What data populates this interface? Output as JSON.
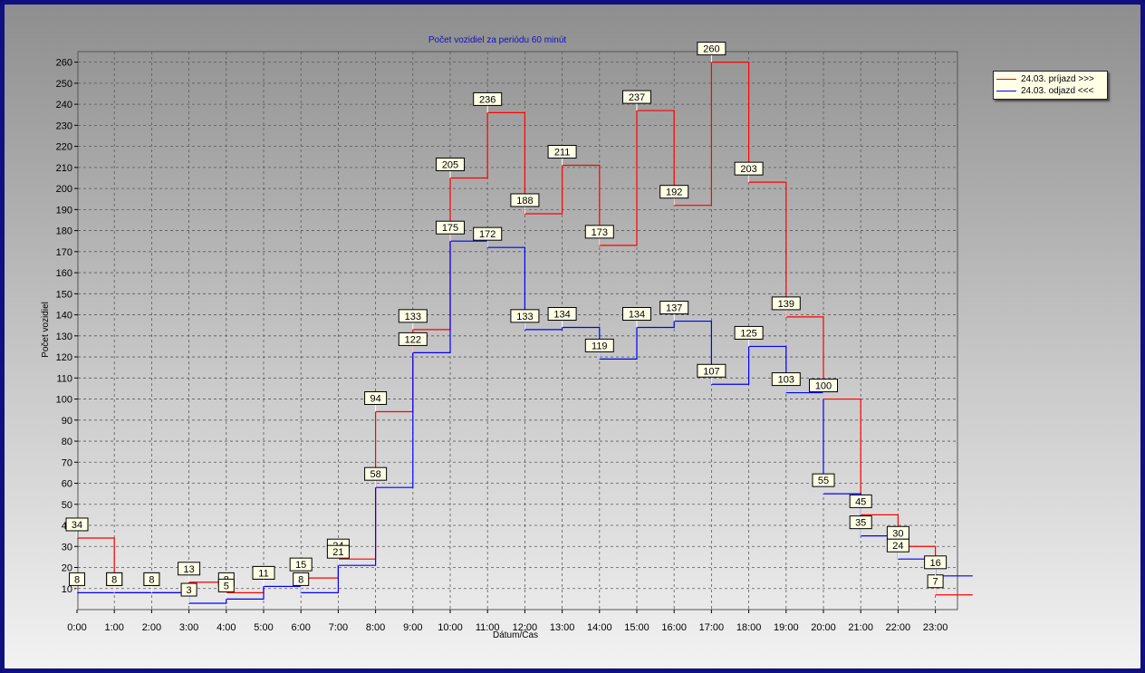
{
  "chart_data": {
    "type": "line",
    "title": "Počet vozidiel za periódu 60 minút",
    "xlabel": "Dátum/Čas",
    "ylabel": "Počet vozidiel",
    "categories": [
      "0:00",
      "1:00",
      "2:00",
      "3:00",
      "4:00",
      "5:00",
      "6:00",
      "7:00",
      "8:00",
      "9:00",
      "10:00",
      "11:00",
      "12:00",
      "13:00",
      "14:00",
      "15:00",
      "16:00",
      "17:00",
      "18:00",
      "19:00",
      "20:00",
      "21:00",
      "22:00",
      "23:00"
    ],
    "ylim": [
      0,
      265
    ],
    "yticks": [
      10,
      20,
      30,
      40,
      50,
      60,
      70,
      80,
      90,
      100,
      110,
      120,
      130,
      140,
      150,
      160,
      170,
      180,
      190,
      200,
      210,
      220,
      230,
      240,
      250,
      260
    ],
    "grid": true,
    "legend_position": "top-right",
    "series": [
      {
        "name": "24.03. príjazd >>>",
        "color": "#ff0000",
        "values": [
          34,
          8,
          8,
          13,
          8,
          11,
          15,
          24,
          94,
          133,
          205,
          236,
          188,
          211,
          173,
          237,
          192,
          260,
          203,
          139,
          100,
          45,
          30,
          7
        ]
      },
      {
        "name": "24.03. odjazd <<<",
        "color": "#0000ff",
        "values": [
          8,
          8,
          8,
          3,
          5,
          11,
          8,
          21,
          58,
          122,
          175,
          172,
          133,
          134,
          119,
          134,
          137,
          107,
          125,
          103,
          55,
          35,
          24,
          16
        ]
      }
    ]
  }
}
